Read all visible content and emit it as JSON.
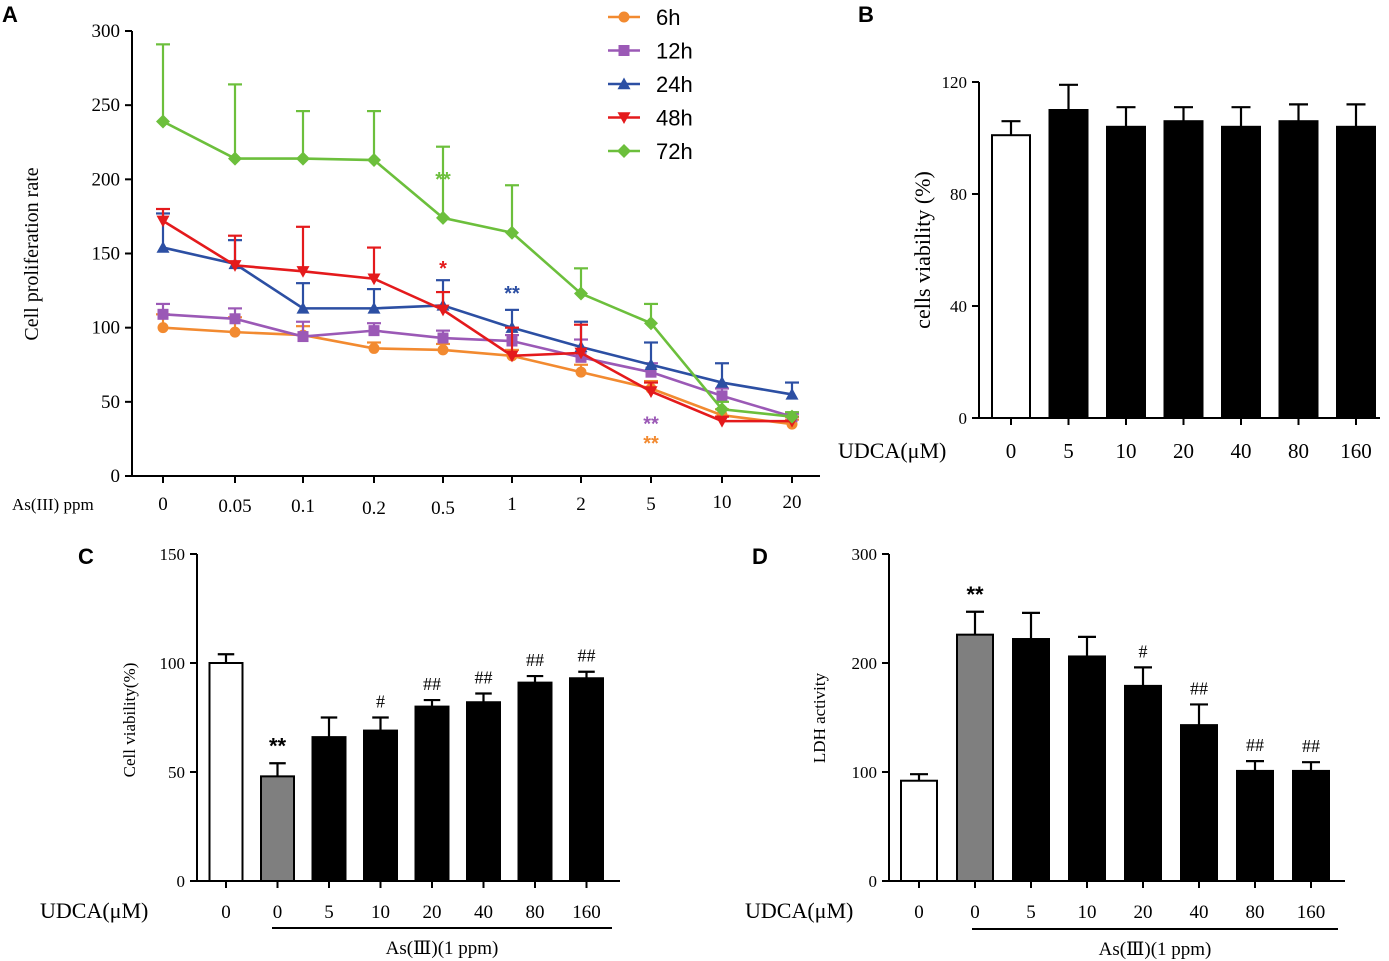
{
  "colors": {
    "6h": "#f28a30",
    "12h": "#9b59b6",
    "24h": "#2c4fa3",
    "48h": "#e41a1c",
    "72h": "#6cbf3c",
    "control_bar": "#ffffff",
    "as_bar": "#7f7f7f",
    "udca_bar": "#000000"
  },
  "chart_data": [
    {
      "panel": "A",
      "type": "line",
      "ylabel": "Cell proliferation rate",
      "xlabel": "As(III)  ppm",
      "categories": [
        "0",
        "0.05",
        "0.1",
        "0.2",
        "0.5",
        "1",
        "2",
        "5",
        "10",
        "20"
      ],
      "ylim": [
        0,
        300
      ],
      "yticks": [
        0,
        50,
        100,
        150,
        200,
        250,
        300
      ],
      "legend_position": "top-center",
      "series": [
        {
          "name": "6h",
          "marker": "circle",
          "color_key": "6h",
          "values": [
            100,
            97,
            95,
            86,
            85,
            81,
            70,
            59,
            41,
            35
          ],
          "errors": [
            9,
            10,
            6,
            4,
            4,
            4,
            5,
            5,
            4,
            3
          ]
        },
        {
          "name": "12h",
          "marker": "square",
          "color_key": "12h",
          "values": [
            109,
            106,
            94,
            98,
            93,
            91,
            80,
            70,
            54,
            40
          ],
          "errors": [
            7,
            7,
            10,
            5,
            5,
            4,
            12,
            6,
            5,
            2
          ]
        },
        {
          "name": "24h",
          "marker": "triangle-up",
          "color_key": "24h",
          "values": [
            154,
            143,
            113,
            113,
            115,
            100,
            87,
            75,
            63,
            55
          ],
          "errors": [
            23,
            16,
            17,
            13,
            17,
            12,
            17,
            15,
            13,
            8
          ]
        },
        {
          "name": "48h",
          "marker": "triangle-down",
          "color_key": "48h",
          "values": [
            172,
            142,
            138,
            133,
            112,
            81,
            83,
            57,
            37,
            37
          ],
          "errors": [
            8,
            20,
            30,
            21,
            12,
            19,
            19,
            6,
            3,
            3
          ]
        },
        {
          "name": "72h",
          "marker": "diamond",
          "color_key": "72h",
          "values": [
            239,
            214,
            214,
            213,
            174,
            164,
            123,
            103,
            45,
            40
          ],
          "errors": [
            52,
            50,
            32,
            33,
            48,
            32,
            17,
            13,
            5,
            3
          ]
        }
      ],
      "annotations": [
        {
          "text": "**",
          "category": "0.5",
          "y": 201,
          "color_key": "72h"
        },
        {
          "text": "*",
          "category": "0.5",
          "y": 141,
          "color_key": "48h"
        },
        {
          "text": "**",
          "category": "1",
          "y": 124,
          "color_key": "24h"
        },
        {
          "text": "**",
          "category": "5",
          "y": 36,
          "color_key": "12h"
        },
        {
          "text": "**",
          "category": "5",
          "y": 23,
          "color_key": "6h"
        }
      ]
    },
    {
      "panel": "B",
      "type": "bar",
      "ylabel": "cells viability (%)",
      "xlabel": "UDCA(μM)",
      "categories": [
        "0",
        "5",
        "10",
        "20",
        "40",
        "80",
        "160"
      ],
      "values": [
        101,
        110,
        104,
        106,
        104,
        106,
        104
      ],
      "errors": [
        5,
        9,
        7,
        5,
        7,
        6,
        8
      ],
      "bar_colors": [
        "control_bar",
        "udca_bar",
        "udca_bar",
        "udca_bar",
        "udca_bar",
        "udca_bar",
        "udca_bar"
      ],
      "ylim": [
        0,
        120
      ],
      "yticks": [
        0,
        40,
        80,
        120
      ]
    },
    {
      "panel": "C",
      "type": "bar",
      "ylabel": "Cell viability(%)",
      "xlabel": "UDCA(μM)",
      "group_label": "As(Ⅲ)(1 ppm)",
      "categories": [
        "0",
        "0",
        "5",
        "10",
        "20",
        "40",
        "80",
        "160"
      ],
      "values": [
        100,
        48,
        66,
        69,
        80,
        82,
        91,
        93
      ],
      "errors": [
        4,
        6,
        9,
        6,
        3,
        4,
        3,
        3
      ],
      "bar_colors": [
        "control_bar",
        "as_bar",
        "udca_bar",
        "udca_bar",
        "udca_bar",
        "udca_bar",
        "udca_bar",
        "udca_bar"
      ],
      "annotations": [
        "",
        "**",
        "",
        "#",
        "##",
        "##",
        "##",
        "##"
      ],
      "ylim": [
        0,
        150
      ],
      "yticks": [
        0,
        50,
        100,
        150
      ]
    },
    {
      "panel": "D",
      "type": "bar",
      "ylabel": "LDH activity",
      "xlabel": "UDCA(μM)",
      "group_label": "As(Ⅲ)(1 ppm)",
      "categories": [
        "0",
        "0",
        "5",
        "10",
        "20",
        "40",
        "80",
        "160"
      ],
      "values": [
        92,
        226,
        222,
        206,
        179,
        143,
        101,
        101
      ],
      "errors": [
        6,
        21,
        24,
        18,
        17,
        19,
        9,
        8
      ],
      "bar_colors": [
        "control_bar",
        "as_bar",
        "udca_bar",
        "udca_bar",
        "udca_bar",
        "udca_bar",
        "udca_bar",
        "udca_bar"
      ],
      "annotations": [
        "",
        "**",
        "",
        "",
        "#",
        "##",
        "##",
        "##"
      ],
      "ylim": [
        0,
        300
      ],
      "yticks": [
        0,
        100,
        200,
        300
      ]
    }
  ]
}
